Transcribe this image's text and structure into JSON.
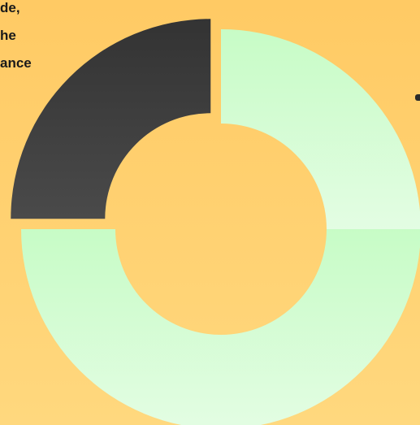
{
  "colors": {
    "background_top": "#ffca64",
    "background_bottom": "#ffd87e",
    "dark_slice": "#3c3c3c",
    "dark_slice_highlight": "#4a4a4a",
    "light_slice_top": "#c7fcc6",
    "light_slice_bottom": "#e3fde3"
  },
  "chart_data": {
    "type": "pie",
    "donut": true,
    "slices": [
      {
        "value": 25,
        "color": "#c7fcc6"
      },
      {
        "value": 50,
        "color": "#d9fdd8"
      },
      {
        "value": 25,
        "color": "#3c3c3c",
        "exploded": true
      }
    ],
    "label_fragments": [
      "de,",
      "he",
      "ance"
    ]
  }
}
